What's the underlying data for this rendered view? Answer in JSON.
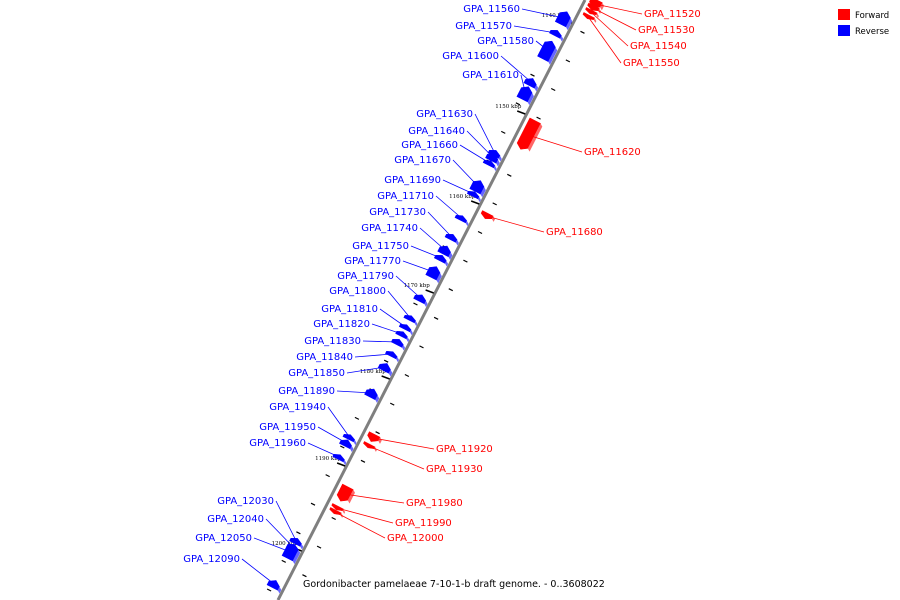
{
  "caption": "Gordonibacter pamelaeae 7-10-1-b draft genome. - 0..3608022",
  "legend": [
    {
      "label": "Forward",
      "color": "#ff0000"
    },
    {
      "label": "Reverse",
      "color": "#0000ff"
    }
  ],
  "colors": {
    "forward": "#ff0000",
    "reverse": "#0000ff",
    "backbone": "#7f7f7f",
    "tick": "#000000"
  },
  "ticks": [
    {
      "label": "1140 kbp",
      "kbp": 1140
    },
    {
      "label": "1150 kbp",
      "kbp": 1150
    },
    {
      "label": "1160 kbp",
      "kbp": 1160
    },
    {
      "label": "1170 kbp",
      "kbp": 1170
    },
    {
      "label": "1180 kbp",
      "kbp": 1180
    },
    {
      "label": "1190 kbp",
      "kbp": 1190
    },
    {
      "label": "1200 kbp",
      "kbp": 1200
    }
  ],
  "genes": [
    {
      "id": "GPA_11520",
      "strand": "forward"
    },
    {
      "id": "GPA_11530",
      "strand": "forward"
    },
    {
      "id": "GPA_11540",
      "strand": "forward"
    },
    {
      "id": "GPA_11550",
      "strand": "forward"
    },
    {
      "id": "GPA_11560",
      "strand": "reverse"
    },
    {
      "id": "GPA_11570",
      "strand": "reverse"
    },
    {
      "id": "GPA_11580",
      "strand": "reverse"
    },
    {
      "id": "GPA_11600",
      "strand": "reverse"
    },
    {
      "id": "GPA_11610",
      "strand": "reverse"
    },
    {
      "id": "GPA_11620",
      "strand": "forward"
    },
    {
      "id": "GPA_11630",
      "strand": "reverse"
    },
    {
      "id": "GPA_11640",
      "strand": "reverse"
    },
    {
      "id": "GPA_11660",
      "strand": "reverse"
    },
    {
      "id": "GPA_11670",
      "strand": "reverse"
    },
    {
      "id": "GPA_11680",
      "strand": "forward"
    },
    {
      "id": "GPA_11690",
      "strand": "reverse"
    },
    {
      "id": "GPA_11710",
      "strand": "reverse"
    },
    {
      "id": "GPA_11730",
      "strand": "reverse"
    },
    {
      "id": "GPA_11740",
      "strand": "reverse"
    },
    {
      "id": "GPA_11750",
      "strand": "reverse"
    },
    {
      "id": "GPA_11770",
      "strand": "reverse"
    },
    {
      "id": "GPA_11790",
      "strand": "reverse"
    },
    {
      "id": "GPA_11800",
      "strand": "reverse"
    },
    {
      "id": "GPA_11810",
      "strand": "reverse"
    },
    {
      "id": "GPA_11820",
      "strand": "reverse"
    },
    {
      "id": "GPA_11830",
      "strand": "reverse"
    },
    {
      "id": "GPA_11840",
      "strand": "reverse"
    },
    {
      "id": "GPA_11850",
      "strand": "reverse"
    },
    {
      "id": "GPA_11890",
      "strand": "reverse"
    },
    {
      "id": "GPA_11920",
      "strand": "forward"
    },
    {
      "id": "GPA_11930",
      "strand": "forward"
    },
    {
      "id": "GPA_11940",
      "strand": "reverse"
    },
    {
      "id": "GPA_11950",
      "strand": "reverse"
    },
    {
      "id": "GPA_11960",
      "strand": "reverse"
    },
    {
      "id": "GPA_11980",
      "strand": "forward"
    },
    {
      "id": "GPA_11990",
      "strand": "forward"
    },
    {
      "id": "GPA_12000",
      "strand": "forward"
    },
    {
      "id": "GPA_12030",
      "strand": "reverse"
    },
    {
      "id": "GPA_12040",
      "strand": "reverse"
    },
    {
      "id": "GPA_12050",
      "strand": "reverse"
    },
    {
      "id": "GPA_12090",
      "strand": "reverse"
    }
  ]
}
